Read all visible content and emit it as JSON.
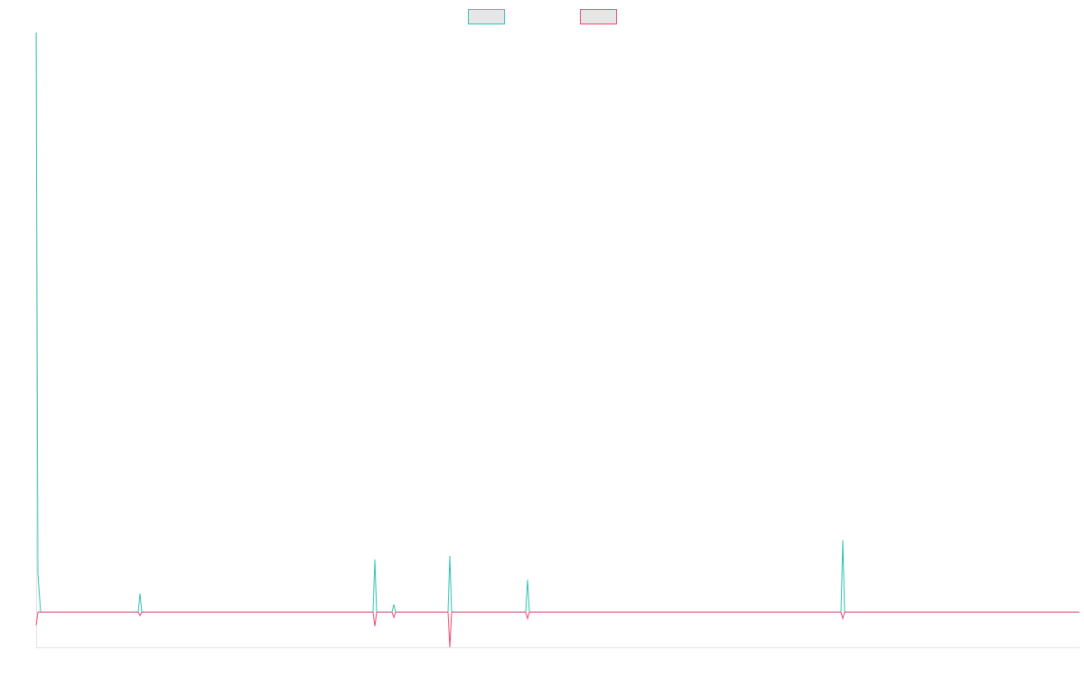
{
  "chart_data": {
    "type": "line",
    "title": "",
    "xlabel": "",
    "ylabel": "",
    "legend_position": "top-center",
    "grid": false,
    "x": [
      0,
      1,
      2,
      3,
      4,
      5,
      6,
      7,
      8,
      9,
      10,
      11,
      12,
      13,
      14,
      15,
      16,
      17,
      18,
      19,
      20,
      21,
      22,
      23,
      24,
      25,
      26,
      27,
      28,
      29,
      30,
      31,
      32,
      33,
      34,
      35,
      36,
      37,
      38,
      39,
      40,
      41,
      42,
      43,
      44,
      45,
      46,
      47,
      48,
      49,
      50,
      51,
      52,
      53,
      54,
      55,
      56,
      57,
      58,
      59,
      60,
      61,
      62,
      63,
      64,
      65,
      66,
      67,
      68,
      69,
      70,
      71,
      72,
      73,
      74,
      75,
      76,
      77,
      78,
      79,
      80,
      81,
      82,
      83,
      84,
      85,
      86,
      87,
      88,
      89,
      90,
      91,
      92,
      93,
      94,
      95,
      96,
      97,
      98,
      99,
      100,
      101,
      102,
      103,
      104,
      105,
      106,
      107,
      108,
      109,
      110,
      111,
      112,
      113,
      114,
      115,
      116,
      117,
      118,
      119,
      120,
      121,
      122,
      123,
      124,
      125,
      126,
      127,
      128,
      129,
      130,
      131,
      132,
      133,
      134,
      135,
      136,
      137,
      138,
      139,
      140,
      141,
      142,
      143,
      144,
      145,
      146,
      147,
      148,
      149,
      150,
      151,
      152,
      153,
      154,
      155,
      156,
      157,
      158,
      159,
      160,
      161,
      162,
      163,
      164,
      165,
      166,
      167,
      168,
      169,
      170,
      171,
      172,
      173,
      174,
      175,
      176,
      177,
      178,
      179,
      180,
      181,
      182,
      183,
      184,
      185,
      186,
      187,
      188,
      189,
      190,
      191,
      192,
      193,
      194,
      195,
      196,
      197,
      198,
      199,
      200,
      201,
      202,
      203,
      204,
      205,
      206,
      207,
      208,
      209,
      210,
      211,
      212,
      213,
      214,
      215,
      216,
      217,
      218,
      219,
      220,
      221,
      222,
      223,
      224,
      225,
      226,
      227,
      228,
      229,
      230,
      231,
      232,
      233,
      234,
      235,
      236,
      237,
      238,
      239,
      240,
      241,
      242,
      243,
      244,
      245,
      246,
      247,
      248,
      249,
      250,
      251,
      252,
      253,
      254,
      255,
      256,
      257,
      258,
      259,
      260,
      261,
      262,
      263,
      264,
      265,
      266,
      267,
      268,
      269,
      270,
      271,
      272,
      273,
      274,
      275,
      276,
      277,
      278,
      279,
      280,
      281,
      282,
      283,
      284,
      285,
      286,
      287,
      288,
      289,
      290,
      291,
      292,
      293,
      294,
      295,
      296,
      297,
      298,
      299,
      300,
      301,
      302,
      303,
      304,
      305,
      306,
      307,
      308,
      309,
      310,
      311,
      312,
      313,
      314,
      315,
      316,
      317,
      318,
      319,
      320,
      321,
      322,
      323,
      324,
      325,
      326,
      327,
      328,
      329,
      330,
      331,
      332,
      333,
      334,
      335,
      336,
      337,
      338,
      339,
      340,
      341,
      342,
      343,
      344,
      345,
      346,
      347,
      348,
      349,
      350,
      351,
      352,
      353,
      354,
      355,
      356,
      357,
      358,
      359,
      360,
      361,
      362,
      363,
      364,
      365,
      366,
      367,
      368,
      369,
      370,
      371,
      372,
      373,
      374,
      375,
      376,
      377,
      378,
      379,
      380,
      381,
      382,
      383,
      384,
      385,
      386,
      387,
      388,
      389,
      390,
      391,
      392,
      393,
      394,
      395,
      396,
      397,
      398,
      399,
      400,
      401,
      402,
      403,
      404,
      405,
      406,
      407,
      408,
      409,
      410,
      411,
      412,
      413,
      414,
      415,
      416,
      417,
      418,
      419,
      420,
      421,
      422,
      423,
      424,
      425,
      426,
      427,
      428,
      429,
      430,
      431,
      432,
      433,
      434,
      435,
      436,
      437,
      438,
      439,
      440,
      441,
      442,
      443,
      444,
      445,
      446,
      447,
      448,
      449,
      450,
      451,
      452,
      453,
      454,
      455,
      456,
      457,
      458,
      459,
      460,
      461,
      462,
      463,
      464,
      465,
      466,
      467,
      468,
      469,
      470,
      471,
      472,
      473,
      474,
      475,
      476,
      477,
      478,
      479,
      480,
      481,
      482,
      483,
      484,
      485,
      486,
      487,
      488,
      489,
      490,
      491,
      492,
      493,
      494,
      495,
      496,
      497,
      498,
      499,
      500,
      501,
      502,
      503,
      504,
      505,
      506,
      507,
      508,
      509,
      510,
      511,
      512,
      513,
      514,
      515,
      516,
      517,
      518,
      519,
      520,
      521,
      522,
      523,
      524,
      525,
      526,
      527,
      528,
      529,
      530,
      531,
      532,
      533,
      534,
      535,
      536,
      537,
      538,
      539,
      540,
      541,
      542,
      543,
      544,
      545,
      546,
      547,
      548,
      549,
      550,
      551,
      552,
      553,
      554,
      555,
      556,
      557,
      558,
      559,
      560,
      561,
      562,
      563,
      564,
      565,
      566,
      567,
      568,
      569,
      570,
      571,
      572,
      573,
      574,
      575,
      576,
      577,
      578,
      579,
      580,
      581,
      582,
      583,
      584,
      585,
      586,
      587,
      588,
      589,
      590,
      591,
      592,
      593,
      594,
      595,
      596,
      597,
      598,
      599,
      600,
      601,
      602,
      603,
      604,
      605,
      606,
      607,
      608,
      609,
      610,
      611,
      612,
      613,
      614,
      615,
      616,
      617,
      618,
      619,
      620,
      621,
      622,
      623,
      624,
      625,
      626,
      627,
      628,
      629,
      630,
      631,
      632,
      633,
      634,
      635,
      636,
      637,
      638,
      639,
      640,
      641,
      642,
      643,
      644,
      645,
      646,
      647,
      648,
      649,
      650,
      651,
      652,
      653,
      654,
      655,
      656,
      657,
      658,
      659,
      660,
      661,
      662,
      663,
      664,
      665,
      666,
      667,
      668,
      669,
      670,
      671,
      672,
      673,
      674,
      675,
      676,
      677,
      678,
      679,
      680,
      681,
      682,
      683,
      684,
      685,
      686,
      687,
      688,
      689,
      690,
      691,
      692,
      693,
      694,
      695,
      696,
      697,
      698,
      699,
      700,
      701,
      702,
      703,
      704,
      705,
      706,
      707,
      708,
      709,
      710,
      711,
      712,
      713,
      714,
      715,
      716,
      717,
      718,
      719,
      720,
      721,
      722,
      723,
      724,
      725,
      726,
      727,
      728,
      729,
      730,
      731,
      732,
      733,
      734,
      735,
      736,
      737,
      738,
      739,
      740,
      741,
      742,
      743,
      744,
      745,
      746,
      747,
      748,
      749,
      750,
      751,
      752,
      753,
      754,
      755,
      756,
      757,
      758,
      759,
      760,
      761,
      762,
      763,
      764,
      765,
      766,
      767,
      768,
      769,
      770,
      771,
      772,
      773,
      774,
      775,
      776,
      777,
      778,
      779,
      780,
      781,
      782,
      783,
      784,
      785,
      786,
      787,
      788,
      789,
      790,
      791,
      792,
      793,
      794,
      795,
      796,
      797,
      798,
      799,
      800,
      801,
      802,
      803,
      804,
      805,
      806,
      807,
      808,
      809,
      810,
      811,
      812,
      813,
      814,
      815,
      816,
      817,
      818,
      819,
      820,
      821,
      822,
      823,
      824,
      825,
      826,
      827,
      828,
      829,
      830,
      831,
      832,
      833,
      834,
      835,
      836,
      837,
      838,
      839,
      840,
      841,
      842,
      843,
      844,
      845,
      846,
      847,
      848,
      849,
      850,
      851,
      852,
      853,
      854,
      855,
      856,
      857,
      858,
      859,
      860,
      861,
      862,
      863,
      864,
      865,
      866,
      867,
      868,
      869,
      870,
      871,
      872,
      873,
      874,
      875,
      876,
      877,
      878,
      879,
      880,
      881,
      882,
      883,
      884,
      885,
      886,
      887,
      888,
      889,
      890,
      891,
      892,
      893,
      894,
      895,
      896,
      897,
      898,
      899,
      900,
      901,
      902,
      903,
      904,
      905,
      906,
      907,
      908,
      909,
      910,
      911,
      912,
      913,
      914,
      915,
      916,
      917,
      918,
      919,
      920,
      921,
      922,
      923,
      924,
      925,
      926,
      927,
      928,
      929,
      930,
      931,
      932,
      933,
      934,
      935,
      936,
      937,
      938,
      939,
      940,
      941,
      942,
      943,
      944,
      945,
      946,
      947,
      948,
      949,
      950,
      951,
      952,
      953,
      954,
      955,
      956,
      957,
      958,
      959,
      960,
      961,
      962,
      963,
      964,
      965,
      966,
      967,
      968,
      969,
      970,
      971,
      972,
      973,
      974,
      975,
      976,
      977,
      978,
      979,
      980,
      981,
      982,
      983,
      984,
      985,
      986,
      987,
      988,
      989,
      990,
      991,
      992,
      993,
      994,
      995,
      996,
      997,
      998,
      999,
      1000,
      1001,
      1002,
      1003,
      1004,
      1005,
      1006,
      1007,
      1008,
      1009,
      1010,
      1011,
      1012,
      1013,
      1014,
      1015,
      1016,
      1017,
      1018,
      1019,
      1020,
      1021,
      1022,
      1023,
      1024,
      1025,
      1026,
      1027,
      1028,
      1029,
      1030,
      1031,
      1032,
      1033,
      1034,
      1035,
      1036,
      1037,
      1038,
      1039,
      1040,
      1041,
      1042,
      1043,
      1044,
      1045,
      1046,
      1047,
      1048,
      1049,
      1050,
      1051,
      1052,
      1053,
      1054,
      1055,
      1056,
      1057,
      1058,
      1059,
      1060,
      1061,
      1062,
      1063,
      1064,
      1065,
      1066,
      1067,
      1068,
      1069,
      1070,
      1071,
      1072,
      1073,
      1074,
      1075,
      1076,
      1077,
      1078,
      1079,
      1080,
      1081,
      1082,
      1083,
      1084,
      1085,
      1086,
      1087,
      1088,
      1089,
      1090,
      1091,
      1092,
      1093,
      1094,
      1095,
      1096,
      1097,
      1098,
      1099,
      1100,
      1101,
      1102,
      1103,
      1104,
      1105,
      1106,
      1107,
      1108,
      1109,
      1110,
      1111,
      1112,
      1113,
      1114,
      1115,
      1116,
      1117,
      1118,
      1119,
      1120,
      1121,
      1122,
      1123,
      1124,
      1125,
      1126,
      1127,
      1128,
      1129,
      1130,
      1131,
      1132,
      1133,
      1134,
      1135,
      1136,
      1137,
      1138,
      1139,
      1140,
      1141,
      1142,
      1143,
      1144,
      1145,
      1146,
      1147,
      1148,
      1149,
      1150,
      1151,
      1152,
      1153,
      1154,
      1155
    ],
    "ylim": [
      -10,
      165
    ],
    "series_sparse": [
      {
        "name": "",
        "color": "#2ec4b6",
        "baseline": 0,
        "points": [
          [
            0,
            165
          ],
          [
            2,
            11
          ],
          [
            5,
            0
          ],
          [
            113,
            0
          ],
          [
            115,
            5.3
          ],
          [
            117,
            0
          ],
          [
            373,
            0
          ],
          [
            375,
            15
          ],
          [
            377,
            0
          ],
          [
            394,
            0
          ],
          [
            396,
            2.2
          ],
          [
            398,
            0
          ],
          [
            456,
            0
          ],
          [
            458,
            16
          ],
          [
            460,
            0
          ],
          [
            542,
            0
          ],
          [
            544,
            9.2
          ],
          [
            546,
            0
          ],
          [
            891,
            0
          ],
          [
            893,
            20.5
          ],
          [
            895,
            0
          ],
          [
            1155,
            0
          ]
        ]
      },
      {
        "name": "",
        "color": "#f2466f",
        "baseline": 0,
        "points": [
          [
            0,
            -3.7
          ],
          [
            2,
            0
          ],
          [
            113,
            0
          ],
          [
            115,
            -1
          ],
          [
            117,
            0
          ],
          [
            373,
            0
          ],
          [
            375,
            -4
          ],
          [
            377,
            0
          ],
          [
            394,
            0
          ],
          [
            396,
            -1.5
          ],
          [
            398,
            0
          ],
          [
            456,
            0
          ],
          [
            458,
            -10
          ],
          [
            460,
            0
          ],
          [
            542,
            0
          ],
          [
            544,
            -1.8
          ],
          [
            546,
            0
          ],
          [
            891,
            0
          ],
          [
            893,
            -1.8
          ],
          [
            895,
            0
          ],
          [
            1155,
            0
          ]
        ]
      }
    ],
    "legend": [
      {
        "name": "",
        "color": "#2ec4b6"
      },
      {
        "name": "",
        "color": "#f2466f"
      }
    ]
  }
}
